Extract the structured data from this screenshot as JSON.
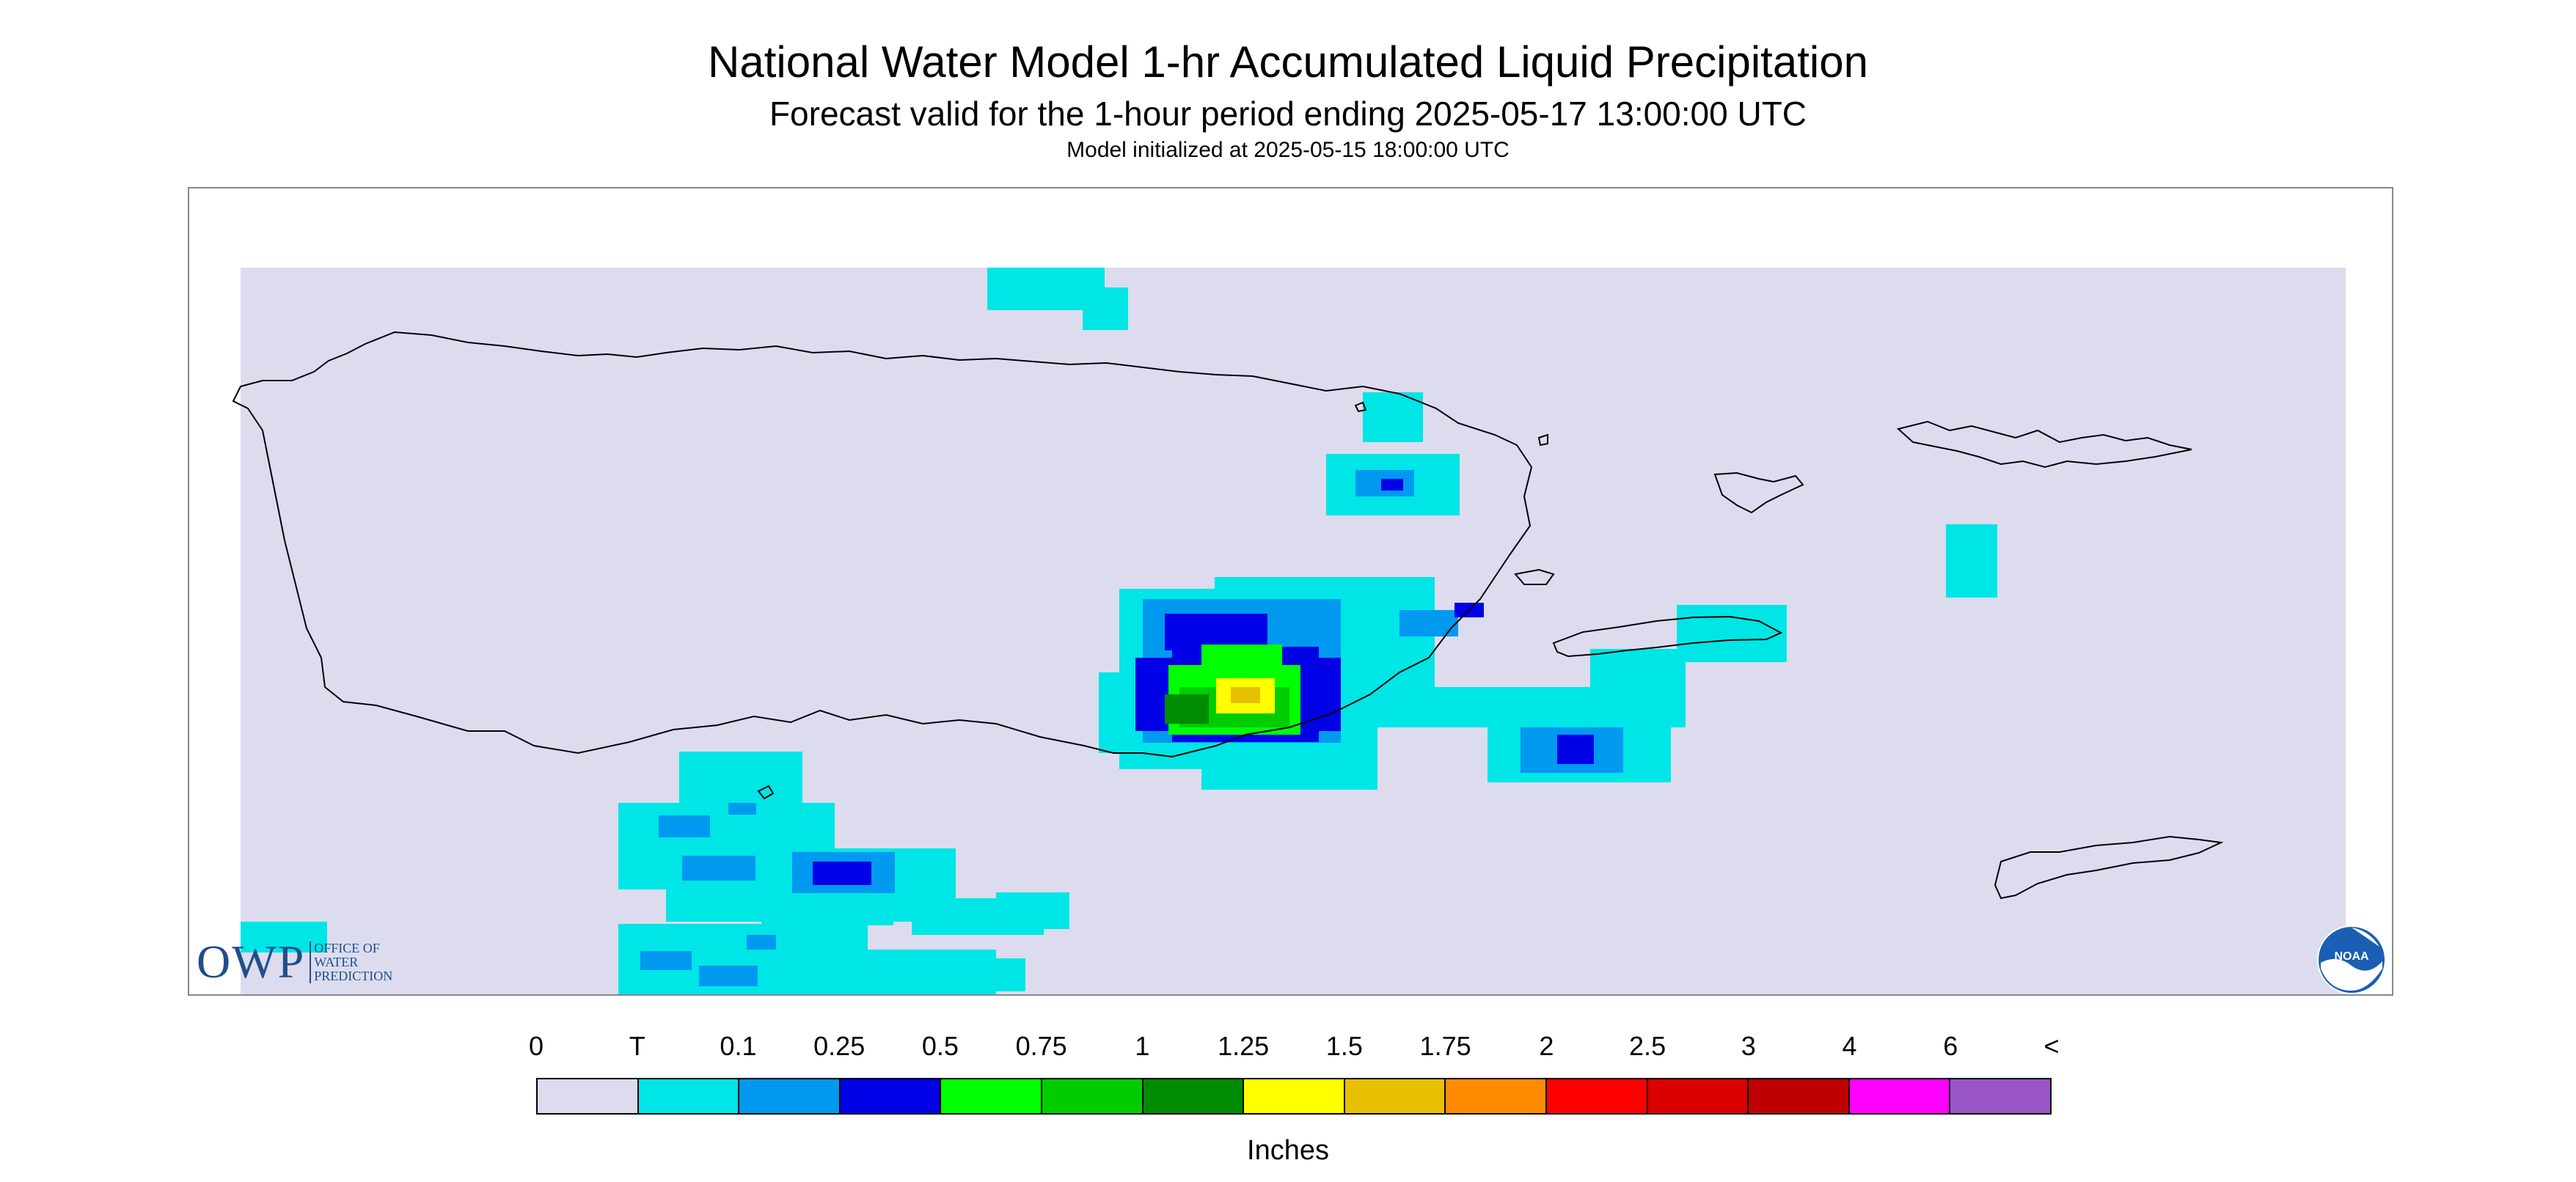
{
  "header": {
    "title": "National Water Model 1-hr Accumulated Liquid Precipitation",
    "subtitle": "Forecast valid for the 1-hour period ending 2025-05-17 13:00:00 UTC",
    "init_line": "Model initialized at 2025-05-15 18:00:00 UTC"
  },
  "logos": {
    "owp_letters": "OWP",
    "owp_full": [
      "OFFICE OF",
      "WATER",
      "PREDICTION"
    ],
    "noaa_text": "NOAA"
  },
  "map": {
    "background_color": "#dcdcee",
    "coastline_color": "#000000"
  },
  "legend": {
    "labels": [
      "0",
      "T",
      "0.1",
      "0.25",
      "0.5",
      "0.75",
      "1",
      "1.25",
      "1.5",
      "1.75",
      "2",
      "2.5",
      "3",
      "4",
      "6",
      "<"
    ],
    "colors": [
      "#dcdcee",
      "#00e5e5",
      "#0099f0",
      "#0000e6",
      "#00ff00",
      "#00cc00",
      "#008c00",
      "#ffff00",
      "#e6c000",
      "#ff8c00",
      "#ff0000",
      "#dc0000",
      "#be0000",
      "#ff00ff",
      "#9955c8"
    ],
    "units": "Inches"
  }
}
